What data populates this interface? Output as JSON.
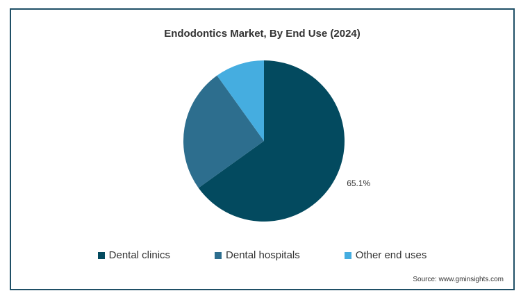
{
  "chart_data": {
    "type": "pie",
    "title": "Endodontics Market, By End Use (2024)",
    "categories": [
      "Dental clinics",
      "Dental hospitals",
      "Other end uses"
    ],
    "values": [
      65.1,
      25.0,
      9.9
    ],
    "unit": "%",
    "colors": [
      "#034a5f",
      "#2d6e8e",
      "#45ade0"
    ],
    "data_labels": [
      "65.1%",
      "",
      ""
    ],
    "legend_position": "bottom",
    "source": "Source: www.gminsights.com"
  }
}
